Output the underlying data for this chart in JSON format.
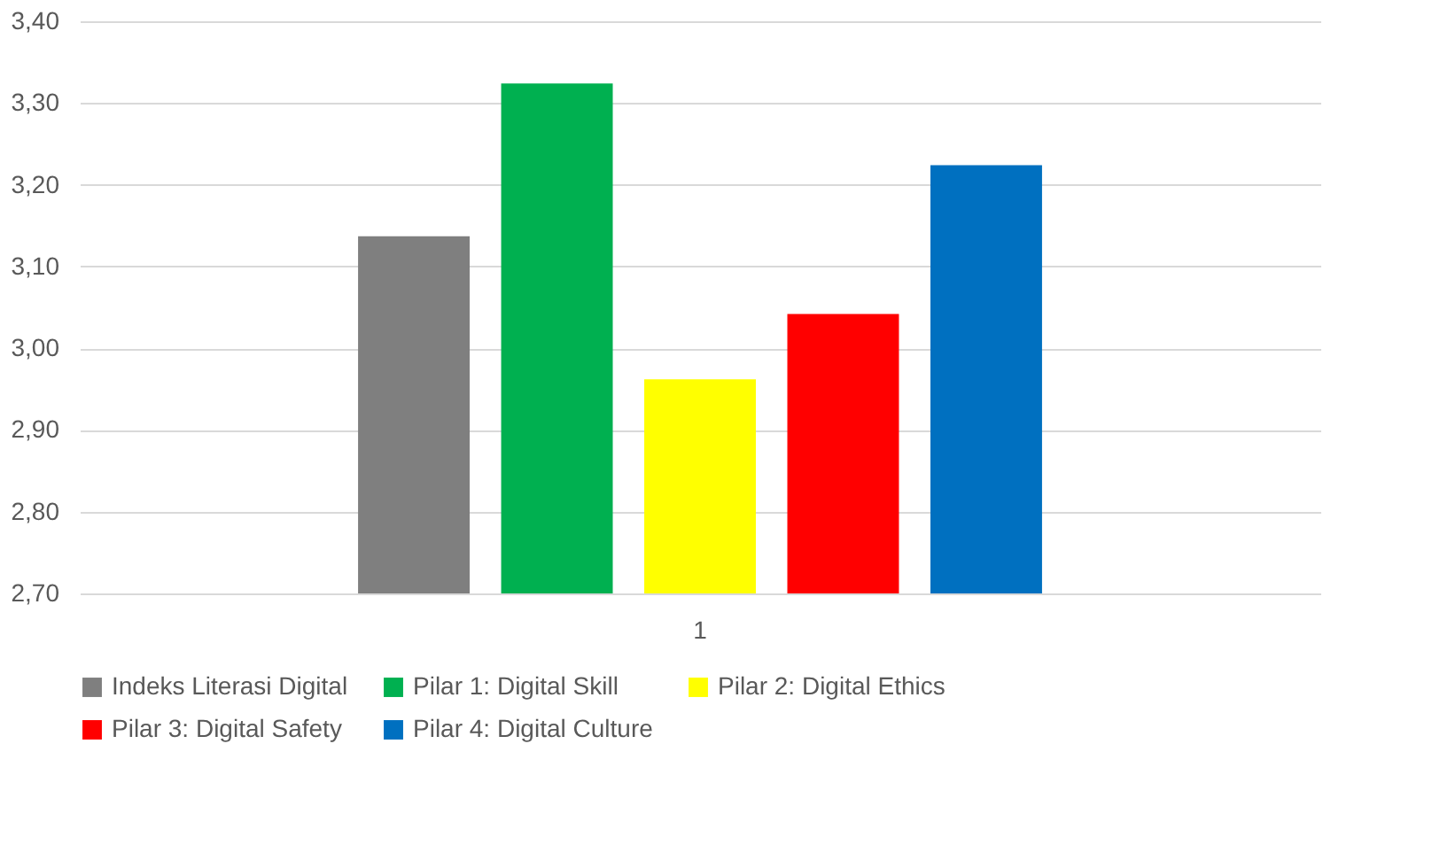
{
  "chart_data": {
    "type": "bar",
    "categories": [
      "1"
    ],
    "series": [
      {
        "name": "Indeks Literasi Digital",
        "color": "#7f7f7f",
        "values": [
          3.137
        ]
      },
      {
        "name": "Pilar 1: Digital Skill",
        "color": "#00b050",
        "values": [
          3.324
        ]
      },
      {
        "name": "Pilar 2: Digital Ethics",
        "color": "#ffff00",
        "values": [
          2.962
        ]
      },
      {
        "name": "Pilar 3: Digital Safety",
        "color": "#ff0000",
        "values": [
          3.042
        ]
      },
      {
        "name": "Pilar 4: Digital Culture",
        "color": "#0070c0",
        "values": [
          3.224
        ]
      }
    ],
    "ylim": [
      2.7,
      3.4
    ],
    "yticks": [
      {
        "value": 2.7,
        "label": "2,70"
      },
      {
        "value": 2.8,
        "label": "2,80"
      },
      {
        "value": 2.9,
        "label": "2,90"
      },
      {
        "value": 3.0,
        "label": "3,00"
      },
      {
        "value": 3.1,
        "label": "3,10"
      },
      {
        "value": 3.2,
        "label": "3,20"
      },
      {
        "value": 3.3,
        "label": "3,30"
      },
      {
        "value": 3.4,
        "label": "3,40"
      }
    ],
    "grid": "y",
    "legend": "bottom"
  }
}
